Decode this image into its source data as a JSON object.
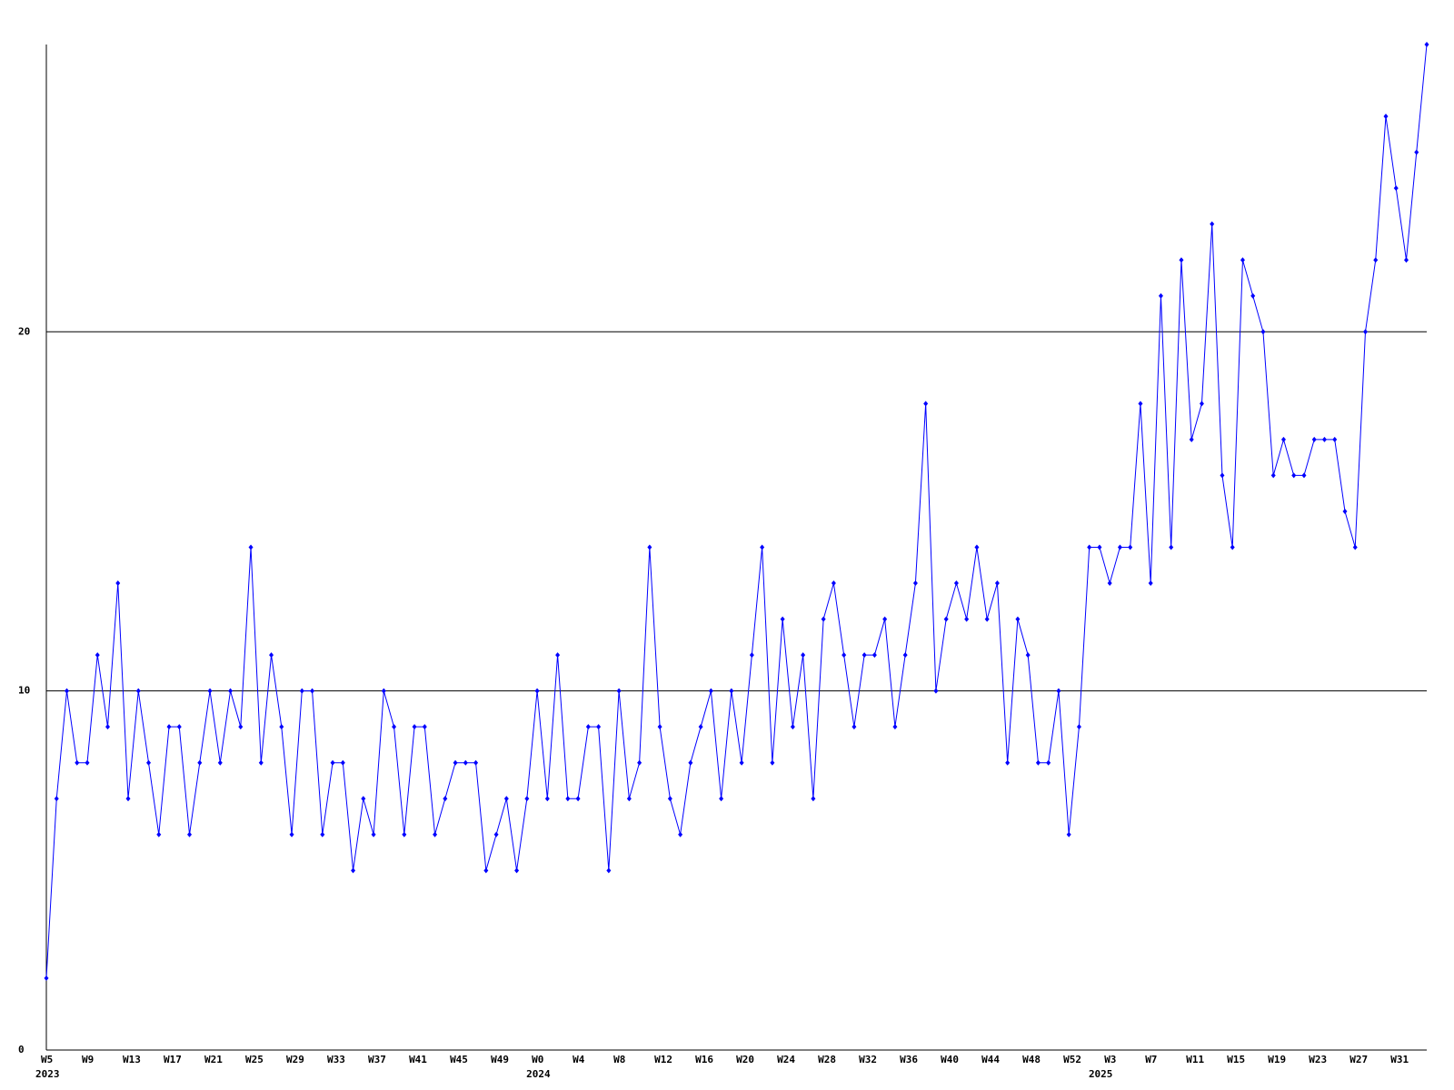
{
  "chart_data": {
    "type": "line",
    "categories": [
      "W5",
      null,
      null,
      null,
      "W9",
      null,
      null,
      null,
      "W13",
      null,
      null,
      null,
      "W17",
      null,
      null,
      null,
      "W21",
      null,
      null,
      null,
      "W25",
      null,
      null,
      null,
      "W29",
      null,
      null,
      null,
      "W33",
      null,
      null,
      null,
      "W37",
      null,
      null,
      null,
      "W41",
      null,
      null,
      null,
      "W45",
      null,
      null,
      null,
      "W49",
      null,
      null,
      null,
      "W0",
      null,
      null,
      null,
      "W4",
      null,
      null,
      null,
      "W8",
      null,
      null,
      null,
      "W12",
      null,
      null,
      null,
      "W16",
      null,
      null,
      null,
      "W20",
      null,
      null,
      null,
      "W24",
      null,
      null,
      null,
      "W28",
      null,
      null,
      null,
      "W32",
      null,
      null,
      null,
      "W36",
      null,
      null,
      null,
      "W40",
      null,
      null,
      null,
      "W44",
      null,
      null,
      null,
      "W48",
      null,
      null,
      null,
      "W52",
      null,
      null,
      null,
      "W3",
      null,
      null,
      null,
      "W7",
      null,
      null,
      null,
      "W11",
      null,
      null,
      null,
      "W15",
      null,
      null,
      null,
      "W19",
      null,
      null,
      null,
      "W23",
      null,
      null,
      null,
      "W27",
      null,
      null,
      null,
      "W31",
      null,
      null,
      null
    ],
    "years": [
      "2023",
      null,
      null,
      null,
      null,
      null,
      null,
      null,
      null,
      null,
      null,
      null,
      null,
      null,
      null,
      null,
      null,
      null,
      null,
      null,
      null,
      null,
      null,
      null,
      null,
      null,
      null,
      null,
      null,
      null,
      null,
      null,
      null,
      null,
      null,
      null,
      null,
      null,
      null,
      null,
      null,
      null,
      null,
      null,
      null,
      null,
      null,
      null,
      "2024",
      null,
      null,
      null,
      null,
      null,
      null,
      null,
      null,
      null,
      null,
      null,
      null,
      null,
      null,
      null,
      null,
      null,
      null,
      null,
      null,
      null,
      null,
      null,
      null,
      null,
      null,
      null,
      null,
      null,
      null,
      null,
      null,
      null,
      null,
      null,
      null,
      null,
      null,
      null,
      null,
      null,
      null,
      null,
      null,
      null,
      null,
      null,
      null,
      null,
      null,
      null,
      null,
      null,
      null,
      "2025",
      null,
      null,
      null,
      null,
      null,
      null,
      null,
      null,
      null,
      null,
      null,
      null,
      null,
      null,
      null,
      null,
      null,
      null,
      null,
      null,
      null,
      null,
      null,
      null,
      null,
      null,
      null,
      null,
      null,
      null,
      null,
      null,
      null
    ],
    "series": [
      {
        "color": "#0000ff",
        "values": [
          2,
          7,
          10,
          8,
          8,
          11,
          9,
          13,
          7,
          10,
          8,
          6,
          9,
          9,
          6,
          8,
          10,
          8,
          10,
          9,
          14,
          8,
          11,
          9,
          6,
          10,
          10,
          6,
          8,
          8,
          5,
          7,
          6,
          10,
          9,
          6,
          9,
          9,
          6,
          7,
          8,
          8,
          8,
          5,
          6,
          7,
          5,
          7,
          10,
          7,
          11,
          7,
          7,
          9,
          9,
          5,
          10,
          7,
          8,
          14,
          9,
          7,
          6,
          8,
          9,
          10,
          7,
          10,
          8,
          11,
          14,
          8,
          12,
          9,
          11,
          7,
          12,
          13,
          11,
          9,
          11,
          11,
          12,
          9,
          11,
          13,
          18,
          10,
          12,
          13,
          12,
          14,
          12,
          13,
          8,
          12,
          11,
          8,
          8,
          10,
          6,
          9,
          14,
          14,
          13,
          14,
          14,
          18,
          13,
          21,
          14,
          22,
          17,
          18,
          23,
          16,
          14,
          22,
          21,
          20,
          16,
          17,
          16,
          16,
          17,
          17,
          17,
          15,
          14,
          20,
          22,
          26,
          24,
          22,
          25,
          28
        ]
      }
    ],
    "ylim": [
      0,
      28
    ],
    "yticks": [
      0,
      10,
      20
    ],
    "grid": true
  }
}
